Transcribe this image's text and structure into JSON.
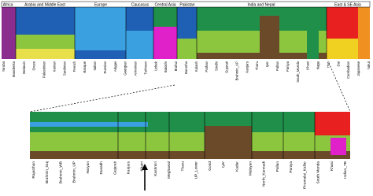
{
  "regions": [
    "Africa",
    "Arabia and Middle East",
    "Europe",
    "Caucasus",
    "Central Asia",
    "Pakistan",
    "India and Nepal",
    "East & SE Asia"
  ],
  "top_populations": [
    "Yoruba",
    "Mandenka",
    "Bedouin",
    "Druze",
    "Palestinian",
    "Iranian",
    "Sardinian",
    "French",
    "Basque",
    "Italian",
    "Russian",
    "Adygei",
    "Georgian",
    "Armenian",
    "Turkmen",
    "Uzbek",
    "Balochi",
    "Brahui",
    "Burusho",
    "Kalash",
    "Pathan",
    "Sindhi",
    "Gujarati",
    "Brahmin_UP",
    "Kanjars",
    "Tharu",
    "Iyer",
    "Pallan",
    "Paniya",
    "South_Munda",
    "Khasi",
    "Naga",
    "Han",
    "Dai",
    "Cambodian",
    "Japanese",
    "Yakut"
  ],
  "bottom_populations": [
    "Rajasthan",
    "Brahmin_Guj",
    "Brahmin_WB",
    "Brahmin_UP",
    "Haryan",
    "Dusadh",
    "Gujarati",
    "Kanjars",
    "Khatri",
    "Kashmiri",
    "Meghawal",
    "Tharu",
    "UP_Lower",
    "Gond",
    "Iyer",
    "Kadar",
    "Malayan",
    "North_Kannadi",
    "Pallan",
    "Paniya",
    "Piramalai_Kallar",
    "South Munda",
    "Khasi",
    "Indian_TB"
  ]
}
